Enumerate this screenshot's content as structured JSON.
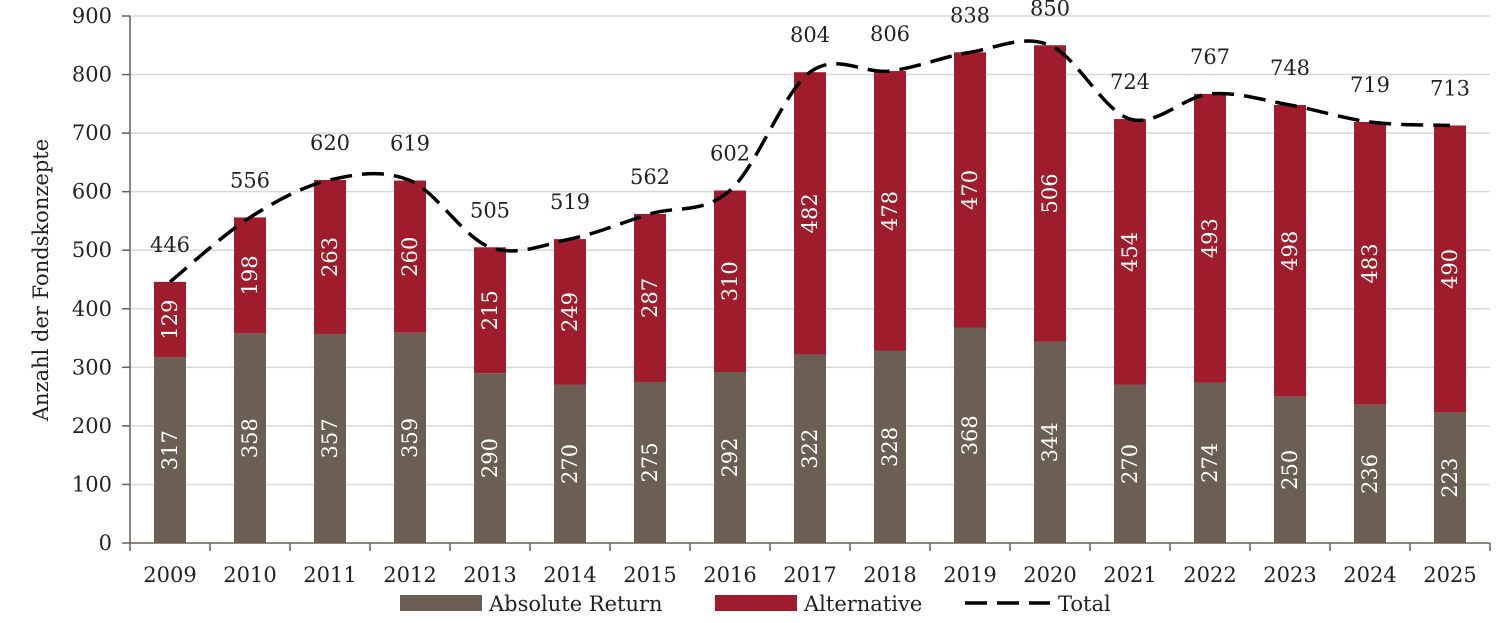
{
  "chart_data": {
    "type": "bar",
    "stacked": true,
    "title": "",
    "xlabel": "",
    "ylabel": "Anzahl der Fondskonzepte",
    "ylim": [
      0,
      900
    ],
    "yticks": [
      0,
      100,
      200,
      300,
      400,
      500,
      600,
      700,
      800,
      900
    ],
    "grid": true,
    "legend_position": "bottom",
    "categories": [
      "2009",
      "2010",
      "2011",
      "2012",
      "2013",
      "2014",
      "2015",
      "2016",
      "2017",
      "2018",
      "2019",
      "2020",
      "2021",
      "2022",
      "2023",
      "2024",
      "2025"
    ],
    "series": [
      {
        "name": "Absolute Return",
        "type": "bar",
        "color": "#6b5e52",
        "values": [
          317,
          358,
          357,
          359,
          290,
          270,
          275,
          292,
          322,
          328,
          368,
          344,
          270,
          274,
          250,
          236,
          223
        ]
      },
      {
        "name": "Alternative",
        "type": "bar",
        "color": "#9e1c2c",
        "values": [
          129,
          198,
          263,
          260,
          215,
          249,
          287,
          310,
          482,
          478,
          470,
          506,
          454,
          493,
          498,
          483,
          490
        ]
      },
      {
        "name": "Total",
        "type": "line",
        "style": "dashed",
        "color": "#000000",
        "values": [
          446,
          556,
          620,
          619,
          505,
          519,
          562,
          602,
          804,
          806,
          838,
          850,
          724,
          767,
          748,
          719,
          713
        ]
      }
    ]
  }
}
